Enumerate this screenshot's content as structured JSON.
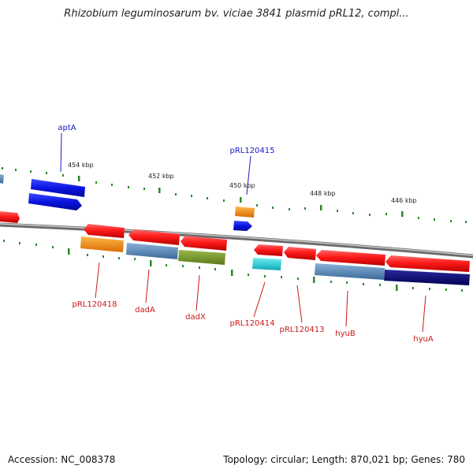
{
  "title": "Rhizobium leguminosarum bv. viciae 3841 plasmid pRL12, compl...",
  "footer": {
    "accession": "Accession: NC_008378",
    "stats": "Topology: circular; Length: 870,021 bp; Genes: 780"
  },
  "kbp_labels": [
    "454 kbp",
    "452 kbp",
    "450 kbp",
    "448 kbp",
    "446 kbp"
  ],
  "gene_labels_top": [
    "aptA",
    "pRL120415"
  ],
  "gene_labels_bottom": [
    "pRL120418",
    "dadA",
    "dadX",
    "pRL120414",
    "pRL120413",
    "hyuB",
    "hyuA"
  ],
  "colors": {
    "forward_gene": "#0a14e0",
    "reverse_gene": "#e8141c",
    "tick": "#2a8a2a",
    "backbone": "#8a8a8a",
    "label_blue": "#1818c8",
    "label_red": "#c81818"
  }
}
